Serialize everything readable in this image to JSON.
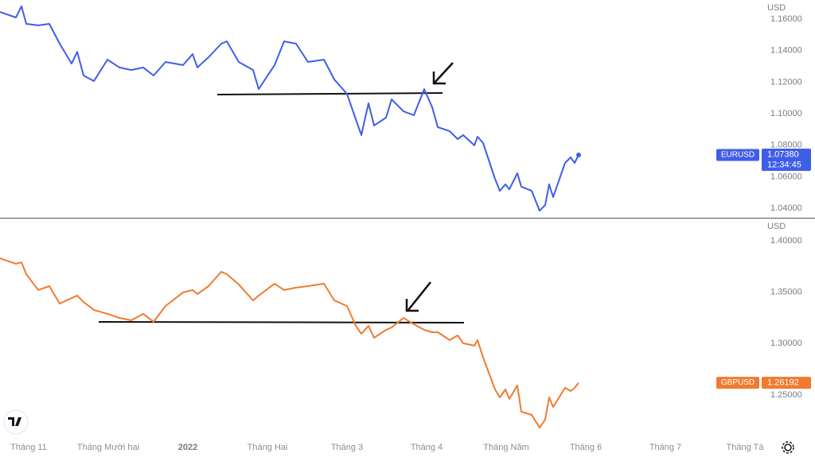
{
  "chart_data": [
    {
      "type": "line",
      "currency": "USD",
      "x": [
        10.64,
        10.84,
        10.91,
        10.97,
        11.12,
        11.26,
        11.39,
        11.54,
        11.61,
        11.69,
        11.82,
        11.99,
        12.14,
        12.29,
        12.44,
        12.57,
        12.72,
        12.94,
        13.06,
        13.12,
        13.26,
        13.42,
        13.49,
        13.64,
        13.82,
        13.89,
        14.09,
        14.21,
        14.36,
        14.51,
        14.71,
        14.84,
        15.0,
        15.11,
        15.18,
        15.27,
        15.34,
        15.49,
        15.56,
        15.71,
        15.84,
        15.97,
        16.07,
        16.14,
        16.29,
        16.39,
        16.46,
        16.6,
        16.64,
        16.71,
        16.86,
        16.92,
        16.99,
        17.04,
        17.14,
        17.19,
        17.32,
        17.42,
        17.49,
        17.54,
        17.59,
        17.74,
        17.81,
        17.86,
        17.91
      ],
      "series": [
        {
          "name": "EURUSD",
          "color": "#3f5ee8",
          "price_label": "1.07380",
          "time_label": "12:34:45",
          "values": [
            1.1645,
            1.161,
            1.1681,
            1.157,
            1.156,
            1.157,
            1.1444,
            1.1318,
            1.1393,
            1.1242,
            1.1207,
            1.1343,
            1.1293,
            1.1277,
            1.1293,
            1.1242,
            1.1328,
            1.1308,
            1.1378,
            1.1293,
            1.1358,
            1.1444,
            1.1459,
            1.1328,
            1.1277,
            1.1156,
            1.1308,
            1.1459,
            1.1444,
            1.1328,
            1.1343,
            1.1217,
            1.1126,
            1.0965,
            1.0864,
            1.1066,
            1.0925,
            1.0975,
            1.1091,
            1.1015,
            1.099,
            1.1156,
            1.1041,
            1.0915,
            1.0889,
            1.0839,
            1.0864,
            1.0799,
            1.0854,
            1.0814,
            1.0587,
            1.0511,
            1.0552,
            1.0521,
            1.0622,
            1.0537,
            1.0511,
            1.0385,
            1.0421,
            1.0552,
            1.0471,
            1.0688,
            1.0723,
            1.0688,
            1.0738
          ]
        }
      ],
      "xlim": [
        10.64,
        20.19
      ],
      "ylim": [
        1.034,
        1.1721
      ],
      "yticks": [
        {
          "value": 1.16,
          "label": "1.16000"
        },
        {
          "value": 1.14,
          "label": "1.14000"
        },
        {
          "value": 1.12,
          "label": "1.12000"
        },
        {
          "value": 1.1,
          "label": "1.10000"
        },
        {
          "value": 1.08,
          "label": "1.08000"
        },
        {
          "value": 1.06,
          "label": "1.06000"
        },
        {
          "value": 1.04,
          "label": "1.04000"
        }
      ],
      "grid": false
    },
    {
      "type": "line",
      "currency": "USD",
      "x": [
        10.64,
        10.84,
        10.91,
        10.97,
        11.12,
        11.26,
        11.39,
        11.54,
        11.61,
        11.69,
        11.82,
        11.99,
        12.14,
        12.29,
        12.44,
        12.57,
        12.72,
        12.94,
        13.06,
        13.12,
        13.26,
        13.42,
        13.49,
        13.64,
        13.82,
        13.89,
        14.09,
        14.21,
        14.36,
        14.51,
        14.71,
        14.84,
        15.0,
        15.11,
        15.18,
        15.27,
        15.34,
        15.49,
        15.56,
        15.71,
        15.84,
        15.97,
        16.07,
        16.14,
        16.29,
        16.39,
        16.46,
        16.6,
        16.64,
        16.71,
        16.86,
        16.92,
        16.99,
        17.04,
        17.14,
        17.19,
        17.32,
        17.42,
        17.49,
        17.54,
        17.59,
        17.74,
        17.81,
        17.86,
        17.91
      ],
      "series": [
        {
          "name": "GBPUSD",
          "color": "#f07b2e",
          "price_label": "1.26192",
          "values": [
            1.383,
            1.3776,
            1.3791,
            1.3675,
            1.3521,
            1.3559,
            1.3389,
            1.3443,
            1.3467,
            1.3405,
            1.3327,
            1.3289,
            1.325,
            1.3227,
            1.3289,
            1.3212,
            1.3366,
            1.3498,
            1.3521,
            1.3482,
            1.3559,
            1.3699,
            1.3675,
            1.3575,
            1.342,
            1.3467,
            1.3583,
            1.3521,
            1.3544,
            1.3559,
            1.3583,
            1.342,
            1.3366,
            1.3173,
            1.3096,
            1.3173,
            1.3057,
            1.3134,
            1.3157,
            1.325,
            1.3188,
            1.3134,
            1.3111,
            1.3111,
            1.3034,
            1.308,
            1.3003,
            1.298,
            1.3034,
            1.2864,
            1.2554,
            1.2477,
            1.2554,
            1.2462,
            1.2593,
            1.2338,
            1.2307,
            1.2183,
            1.2261,
            1.2477,
            1.2384,
            1.257,
            1.2539,
            1.257,
            1.26192
          ]
        }
      ],
      "xlim": [
        10.64,
        20.19
      ],
      "xticks": [
        {
          "value": 11,
          "label": "Tháng 11"
        },
        {
          "value": 12,
          "label": "Tháng Mười hai"
        },
        {
          "value": 13,
          "label": "2022"
        },
        {
          "value": 14,
          "label": "Tháng Hai"
        },
        {
          "value": 15,
          "label": "Tháng 3"
        },
        {
          "value": 16,
          "label": "Tháng 4"
        },
        {
          "value": 17,
          "label": "Tháng Năm"
        },
        {
          "value": 18,
          "label": "Tháng 6"
        },
        {
          "value": 19,
          "label": "Tháng 7"
        },
        {
          "value": 20,
          "label": "Tháng Tá"
        }
      ],
      "ylim": [
        1.2106,
        1.4216
      ],
      "yticks": [
        {
          "value": 1.4,
          "label": "1.40000"
        },
        {
          "value": 1.35,
          "label": "1.35000"
        },
        {
          "value": 1.3,
          "label": "1.30000"
        },
        {
          "value": 1.25,
          "label": "1.25000"
        }
      ],
      "grid": false
    }
  ]
}
